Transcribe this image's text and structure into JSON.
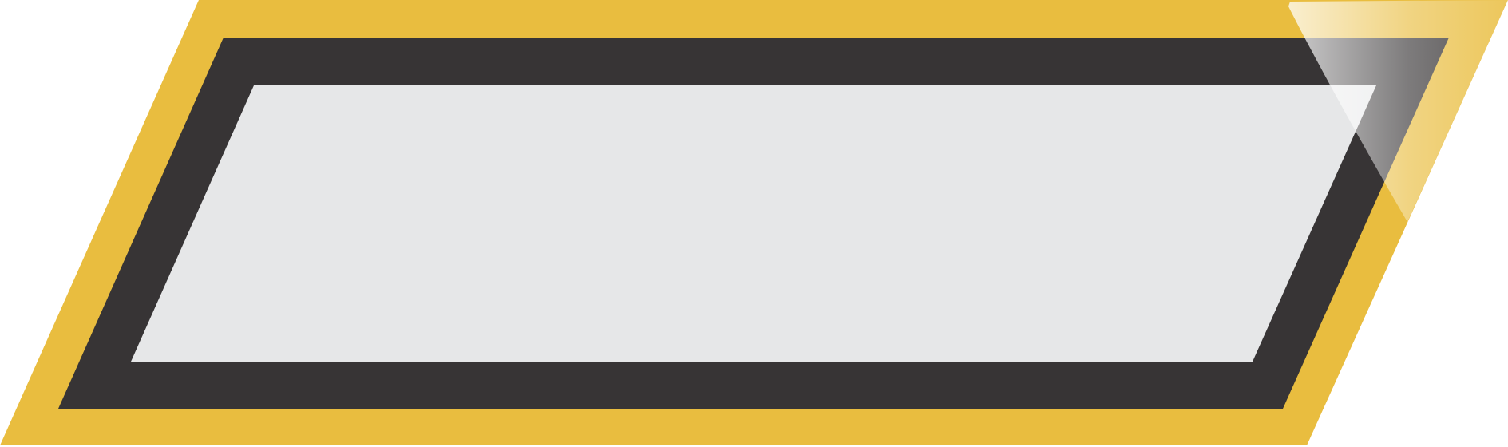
{
  "banner": {
    "colors": {
      "outer_frame": "#E9BD3F",
      "inner_frame": "#373435",
      "panel": "#E6E7E8",
      "gloss": "#FFFFFF"
    },
    "panel_text": ""
  }
}
